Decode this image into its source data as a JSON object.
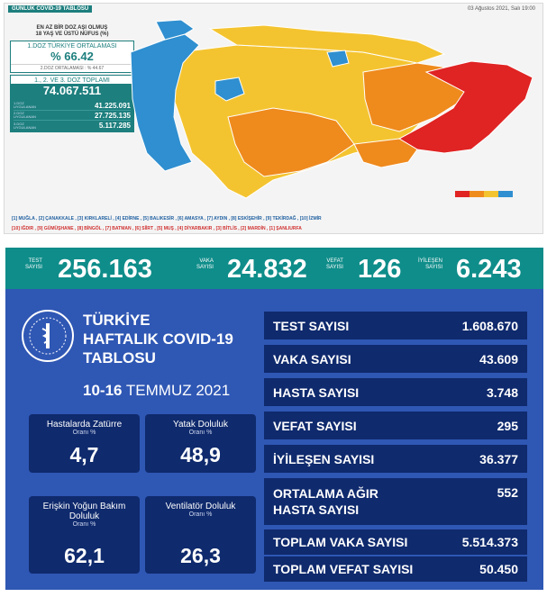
{
  "map_panel": {
    "title": "GÜNLÜK COVID-19 TABLOSU",
    "date": "03 Ağustos 2021, Salı 19:00",
    "header": "EN AZ BİR DOZ AŞI OLMUŞ\n18 YAŞ VE ÜSTÜ NÜFUS (%)",
    "first_dose_avg_label": "1.DOZ TÜRKİYE ORTALAMASI",
    "first_dose_avg_value": "% 66.42",
    "second_dose_avg": "2.DOZ ORTALAMASI : % 44.67",
    "total_label": "1., 2. VE 3. DOZ TOPLAMI",
    "total_value": "74.067.511",
    "doses": [
      {
        "label": "1.DOZ UYGULANAN",
        "value": "41.225.091"
      },
      {
        "label": "2.DOZ UYGULANAN",
        "value": "27.725.135"
      },
      {
        "label": "3.DOZ UYGULANAN",
        "value": "5.117.285"
      }
    ],
    "legend_best": "[1] MUĞLA , [2] ÇANAKKALE , [3] KIRKLARELİ , [4] EDİRNE , [5] BALIKESİR , [6] AMASYA , [7] AYDIN , [8] ESKİŞEHİR , [9] TEKİRDAĞ , [10] İZMİR",
    "legend_worst": "[10] IĞDIR , [9] GÜMÜŞHANE , [8] BİNGÖL , [7] BATMAN , [6] SİİRT , [5] MUŞ , [4] DİYARBAKIR , [3] BİTLİS , [2] MARDİN , [1] ŞANLIURFA",
    "colors": {
      "blue": "#2f8fd0",
      "yellow": "#f4c430",
      "orange": "#ef8a1d",
      "red": "#e02323",
      "teal": "#1d7f7e"
    }
  },
  "daily": {
    "test_label": "TEST\nSAYISI",
    "test_value": "256.163",
    "case_label": "VAKA\nSAYISI",
    "case_value": "24.832",
    "death_label": "VEFAT\nSAYISI",
    "death_value": "126",
    "recovered_label": "İYİLEŞEN\nSAYISI",
    "recovered_value": "6.243"
  },
  "weekly": {
    "title": "TÜRKİYE\nHAFTALIK COVID-19\nTABLOSU",
    "date_bold": "10-16",
    "date_rest": " TEMMUZ 2021",
    "tiles": [
      {
        "title": "Hastalarda Zatürre",
        "sub": "Oranı %",
        "value": "4,7"
      },
      {
        "title": "Yatak Doluluk",
        "sub": "Oranı %",
        "value": "48,9"
      },
      {
        "title": "Erişkin Yoğun Bakım\nDoluluk",
        "sub": "Oranı %",
        "value": "62,1"
      },
      {
        "title": "Ventilatör Doluluk",
        "sub": "Oranı %",
        "value": "26,3"
      }
    ],
    "stats": [
      {
        "label": "TEST SAYISI",
        "value": "1.608.670"
      },
      {
        "label": "VAKA SAYISI",
        "value": "43.609"
      },
      {
        "label": "HASTA SAYISI",
        "value": "3.748"
      },
      {
        "label": "VEFAT SAYISI",
        "value": "295"
      },
      {
        "label": "İYİLEŞEN SAYISI",
        "value": "36.377"
      },
      {
        "label": "ORTALAMA AĞIR\nHASTA SAYISI",
        "value": "552"
      },
      {
        "label": "TOPLAM VAKA SAYISI",
        "value": "5.514.373"
      },
      {
        "label": "TOPLAM VEFAT SAYISI",
        "value": "50.450"
      }
    ],
    "colors": {
      "panel": "#2f57b4",
      "box": "#0f2a6d",
      "strip": "#0f8d8a"
    }
  }
}
